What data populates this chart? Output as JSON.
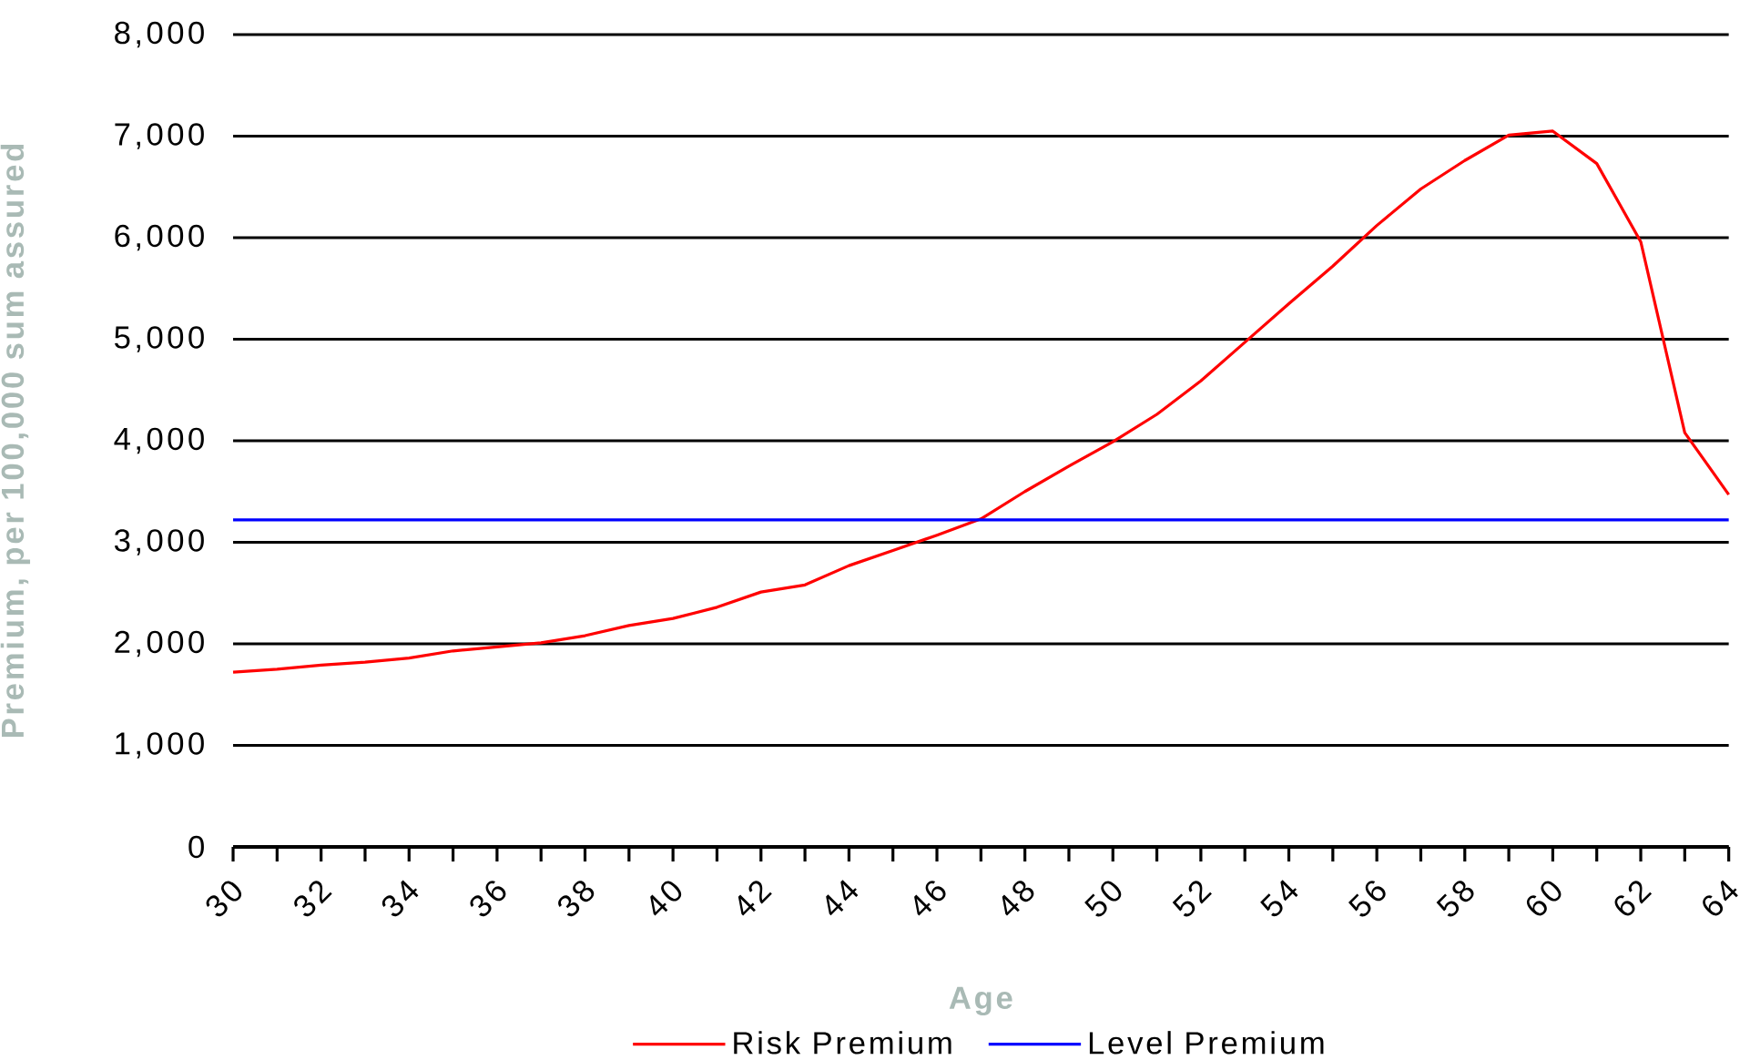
{
  "chart_data": {
    "type": "line",
    "xlabel": "Age",
    "ylabel": "Premium, per 100,000 sum assured",
    "xlim": [
      30,
      64
    ],
    "ylim": [
      0,
      8000
    ],
    "xticks": [
      30,
      {
        "value": 31,
        "label": null
      },
      32,
      {
        "value": 33,
        "label": null
      },
      34,
      {
        "value": 35,
        "label": null
      },
      36,
      {
        "value": 37,
        "label": null
      },
      38,
      {
        "value": 39,
        "label": null
      },
      40,
      {
        "value": 41,
        "label": null
      },
      42,
      {
        "value": 43,
        "label": null
      },
      44,
      {
        "value": 45,
        "label": null
      },
      46,
      {
        "value": 47,
        "label": null
      },
      48,
      {
        "value": 49,
        "label": null
      },
      50,
      {
        "value": 51,
        "label": null
      },
      52,
      {
        "value": 53,
        "label": null
      },
      54,
      {
        "value": 55,
        "label": null
      },
      56,
      {
        "value": 57,
        "label": null
      },
      58,
      {
        "value": 59,
        "label": null
      },
      60,
      {
        "value": 61,
        "label": null
      },
      62,
      {
        "value": 63,
        "label": null
      },
      64
    ],
    "yticks": [
      0,
      {
        "value": 1000,
        "label": "1,000"
      },
      {
        "value": 2000,
        "label": "2,000"
      },
      {
        "value": 3000,
        "label": "3,000"
      },
      {
        "value": 4000,
        "label": "4,000"
      },
      {
        "value": 5000,
        "label": "5,000"
      },
      {
        "value": 6000,
        "label": "6,000"
      },
      {
        "value": 7000,
        "label": "7,000"
      },
      {
        "value": 8000,
        "label": "8,000"
      }
    ],
    "grid": "y",
    "legend": "bottom",
    "marker": "none",
    "line_style": "solid",
    "series": [
      {
        "name": "Risk Premium",
        "color": "#ff0000",
        "x": [
          30,
          31,
          32,
          33,
          34,
          35,
          36,
          37,
          38,
          39,
          40,
          41,
          42,
          43,
          44,
          45,
          46,
          47,
          48,
          49,
          50,
          51,
          52,
          53,
          54,
          55,
          56,
          57,
          58,
          59,
          60,
          61,
          62,
          63,
          64
        ],
        "values": [
          1720,
          1750,
          1790,
          1820,
          1860,
          1930,
          1970,
          2010,
          2080,
          2180,
          2250,
          2360,
          2510,
          2580,
          2770,
          2920,
          3070,
          3230,
          3500,
          3750,
          3990,
          4260,
          4590,
          4970,
          5350,
          5720,
          6120,
          6480,
          6760,
          7010,
          7050,
          6730,
          5960,
          4080,
          3470
        ]
      },
      {
        "name": "Level Premium",
        "color": "#0000ff",
        "x": [
          30,
          64
        ],
        "values": [
          3220,
          3220
        ]
      }
    ]
  }
}
